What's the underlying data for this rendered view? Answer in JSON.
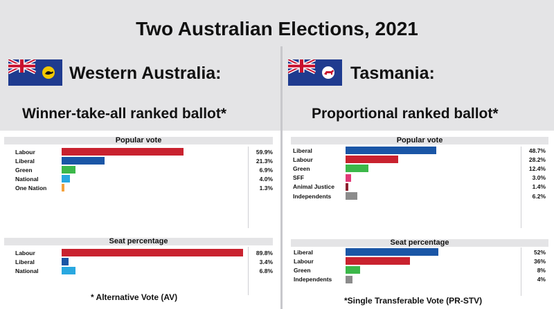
{
  "page": {
    "title": "Two Australian Elections, 2021",
    "colors": {
      "band": "#e4e4e6",
      "Labour": "#c9222f",
      "Liberal": "#1a56a6",
      "Green": "#3cb84a",
      "National": "#29a8e0",
      "One Nation": "#f4a23c",
      "SFF": "#e23a78",
      "Animal Justice": "#8c1f2d",
      "Independents": "#8c8c8c"
    }
  },
  "panels": {
    "left": {
      "state": "Western Australia:",
      "flag_icon": "western-australia-flag-icon",
      "system": "Winner-take-all ranked ballot*",
      "footnote": "* Alternative Vote (AV)"
    },
    "right": {
      "state": "Tasmania:",
      "flag_icon": "tasmania-flag-icon",
      "system": "Proportional ranked ballot*",
      "footnote": "*Single Transferable Vote (PR-STV)"
    }
  },
  "chart_data": [
    {
      "type": "bar",
      "orientation": "horizontal",
      "title": "Popular vote",
      "panel": "Western Australia",
      "categories": [
        "Labour",
        "Liberal",
        "Green",
        "National",
        "One Nation"
      ],
      "values": [
        59.9,
        21.3,
        6.9,
        4.0,
        1.3
      ],
      "value_labels": [
        "59.9%",
        "21.3%",
        "6.9%",
        "4.0%",
        "1.3%"
      ],
      "xlim": [
        0,
        100
      ]
    },
    {
      "type": "bar",
      "orientation": "horizontal",
      "title": "Seat percentage",
      "panel": "Western Australia",
      "categories": [
        "Labour",
        "Liberal",
        "National"
      ],
      "values": [
        89.8,
        3.4,
        6.8
      ],
      "value_labels": [
        "89.8%",
        "3.4%",
        "6.8%"
      ],
      "xlim": [
        0,
        100
      ]
    },
    {
      "type": "bar",
      "orientation": "horizontal",
      "title": "Popular vote",
      "panel": "Tasmania",
      "categories": [
        "Liberal",
        "Labour",
        "Green",
        "SFF",
        "Animal Justice",
        "Independents"
      ],
      "values": [
        48.7,
        28.2,
        12.4,
        3.0,
        1.4,
        6.2
      ],
      "value_labels": [
        "48.7%",
        "28.2%",
        "12.4%",
        "3.0%",
        "1.4%",
        "6.2%"
      ],
      "xlim": [
        0,
        100
      ]
    },
    {
      "type": "bar",
      "orientation": "horizontal",
      "title": "Seat percentage",
      "panel": "Tasmania",
      "categories": [
        "Liberal",
        "Labour",
        "Green",
        "Independents"
      ],
      "values": [
        52,
        36,
        8,
        4
      ],
      "value_labels": [
        "52%",
        "36%",
        "8%",
        "4%"
      ],
      "xlim": [
        0,
        100
      ]
    }
  ]
}
